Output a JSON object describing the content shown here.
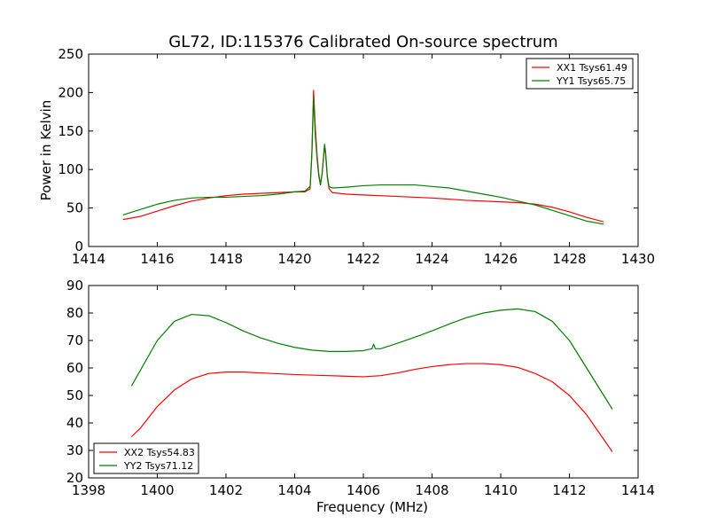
{
  "figure_title": "GL72, ID:115376 Calibrated On-source spectrum",
  "chart_data": [
    {
      "type": "line",
      "ylabel": "Power in Kelvin",
      "xlabel": "",
      "xlim": [
        1414,
        1430
      ],
      "ylim": [
        0,
        250
      ],
      "xticks": [
        1414,
        1416,
        1418,
        1420,
        1422,
        1424,
        1426,
        1428,
        1430
      ],
      "yticks": [
        0,
        50,
        100,
        150,
        200,
        250
      ],
      "legend_position": "upper right",
      "grid": false,
      "series": [
        {
          "name": "XX1 Tsys61.49",
          "color": "#ff0000",
          "points": [
            [
              1415.0,
              35
            ],
            [
              1415.5,
              39
            ],
            [
              1416.0,
              46
            ],
            [
              1416.5,
              53
            ],
            [
              1417.0,
              59
            ],
            [
              1417.5,
              63
            ],
            [
              1418.0,
              66
            ],
            [
              1418.5,
              68
            ],
            [
              1419.0,
              69
            ],
            [
              1419.5,
              70
            ],
            [
              1420.0,
              71
            ],
            [
              1420.3,
              71
            ],
            [
              1420.45,
              75
            ],
            [
              1420.5,
              120
            ],
            [
              1420.55,
              203
            ],
            [
              1420.6,
              155
            ],
            [
              1420.65,
              120
            ],
            [
              1420.7,
              95
            ],
            [
              1420.75,
              80
            ],
            [
              1420.8,
              95
            ],
            [
              1420.87,
              130
            ],
            [
              1420.9,
              120
            ],
            [
              1420.95,
              90
            ],
            [
              1421.0,
              75
            ],
            [
              1421.1,
              70
            ],
            [
              1421.5,
              68
            ],
            [
              1422.0,
              67
            ],
            [
              1423.0,
              65
            ],
            [
              1424.0,
              63
            ],
            [
              1425.0,
              60
            ],
            [
              1426.0,
              58
            ],
            [
              1426.5,
              57
            ],
            [
              1427.0,
              55
            ],
            [
              1427.5,
              51
            ],
            [
              1428.0,
              45
            ],
            [
              1428.5,
              38
            ],
            [
              1429.0,
              32
            ]
          ]
        },
        {
          "name": "YY1 Tsys65.75",
          "color": "#008000",
          "points": [
            [
              1415.0,
              41
            ],
            [
              1415.5,
              48
            ],
            [
              1416.0,
              55
            ],
            [
              1416.5,
              60
            ],
            [
              1417.0,
              63
            ],
            [
              1417.5,
              64
            ],
            [
              1418.0,
              64
            ],
            [
              1418.5,
              65
            ],
            [
              1419.0,
              66
            ],
            [
              1419.5,
              68
            ],
            [
              1420.0,
              71
            ],
            [
              1420.3,
              72
            ],
            [
              1420.45,
              78
            ],
            [
              1420.5,
              120
            ],
            [
              1420.55,
              193
            ],
            [
              1420.6,
              145
            ],
            [
              1420.65,
              115
            ],
            [
              1420.7,
              92
            ],
            [
              1420.75,
              80
            ],
            [
              1420.8,
              95
            ],
            [
              1420.87,
              133
            ],
            [
              1420.9,
              123
            ],
            [
              1420.95,
              92
            ],
            [
              1421.0,
              78
            ],
            [
              1421.1,
              76
            ],
            [
              1421.5,
              77
            ],
            [
              1422.0,
              79
            ],
            [
              1422.5,
              80
            ],
            [
              1423.0,
              80
            ],
            [
              1423.5,
              80
            ],
            [
              1424.0,
              78
            ],
            [
              1424.5,
              76
            ],
            [
              1425.0,
              72
            ],
            [
              1425.5,
              68
            ],
            [
              1426.0,
              64
            ],
            [
              1426.5,
              59
            ],
            [
              1427.0,
              54
            ],
            [
              1427.5,
              47
            ],
            [
              1428.0,
              40
            ],
            [
              1428.5,
              33
            ],
            [
              1429.0,
              29
            ]
          ]
        }
      ]
    },
    {
      "type": "line",
      "xlabel": "Frequency (MHz)",
      "ylabel": "",
      "xlim": [
        1398,
        1414
      ],
      "ylim": [
        20,
        90
      ],
      "xticks": [
        1398,
        1400,
        1402,
        1404,
        1406,
        1408,
        1410,
        1412,
        1414
      ],
      "yticks": [
        20,
        30,
        40,
        50,
        60,
        70,
        80,
        90
      ],
      "legend_position": "lower left",
      "grid": false,
      "series": [
        {
          "name": "XX2 Tsys54.83",
          "color": "#ff0000",
          "points": [
            [
              1399.25,
              35
            ],
            [
              1399.5,
              38
            ],
            [
              1400.0,
              46
            ],
            [
              1400.5,
              52
            ],
            [
              1401.0,
              56
            ],
            [
              1401.5,
              58
            ],
            [
              1402.0,
              58.5
            ],
            [
              1402.5,
              58.5
            ],
            [
              1403.0,
              58.2
            ],
            [
              1404.0,
              57.6
            ],
            [
              1405.0,
              57.2
            ],
            [
              1406.0,
              56.8
            ],
            [
              1406.5,
              57.2
            ],
            [
              1407.0,
              58.2
            ],
            [
              1407.5,
              59.5
            ],
            [
              1408.0,
              60.5
            ],
            [
              1408.5,
              61.2
            ],
            [
              1409.0,
              61.6
            ],
            [
              1409.5,
              61.6
            ],
            [
              1410.0,
              61.2
            ],
            [
              1410.5,
              60.2
            ],
            [
              1411.0,
              58
            ],
            [
              1411.5,
              55
            ],
            [
              1412.0,
              50
            ],
            [
              1412.5,
              43
            ],
            [
              1413.0,
              34
            ],
            [
              1413.25,
              29.5
            ]
          ]
        },
        {
          "name": "YY2 Tsys71.12",
          "color": "#008000",
          "points": [
            [
              1399.25,
              53.5
            ],
            [
              1399.5,
              59
            ],
            [
              1400.0,
              70
            ],
            [
              1400.5,
              77
            ],
            [
              1401.0,
              79.5
            ],
            [
              1401.5,
              79
            ],
            [
              1402.0,
              76.5
            ],
            [
              1402.5,
              73.5
            ],
            [
              1403.0,
              71
            ],
            [
              1403.5,
              69
            ],
            [
              1404.0,
              67.5
            ],
            [
              1404.5,
              66.5
            ],
            [
              1405.0,
              66
            ],
            [
              1405.5,
              66
            ],
            [
              1406.0,
              66.3
            ],
            [
              1406.25,
              67
            ],
            [
              1406.3,
              68.7
            ],
            [
              1406.35,
              67
            ],
            [
              1406.5,
              67
            ],
            [
              1407.0,
              69
            ],
            [
              1407.5,
              71.2
            ],
            [
              1408.0,
              73.5
            ],
            [
              1408.5,
              76
            ],
            [
              1409.0,
              78.3
            ],
            [
              1409.5,
              80
            ],
            [
              1410.0,
              81
            ],
            [
              1410.5,
              81.5
            ],
            [
              1411.0,
              80.5
            ],
            [
              1411.5,
              77
            ],
            [
              1412.0,
              70
            ],
            [
              1412.5,
              60
            ],
            [
              1413.0,
              50
            ],
            [
              1413.25,
              45
            ]
          ]
        }
      ]
    }
  ]
}
